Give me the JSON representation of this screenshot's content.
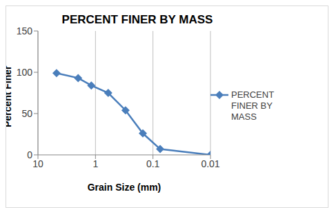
{
  "chart_data": {
    "type": "line",
    "title": "PERCENT FINER BY MASS",
    "x_label": "Grain Size (mm)",
    "y_label": "Percent Finer",
    "x": [
      4.75,
      2.0,
      1.18,
      0.6,
      0.3,
      0.15,
      0.075,
      0.01
    ],
    "series": [
      {
        "name": "PERCENT FINER BY MASS",
        "color": "#4a7ebb",
        "marker": "diamond",
        "values": [
          99,
          93,
          84,
          75,
          54,
          26,
          7,
          0
        ]
      }
    ],
    "xlim": [
      0.01,
      10
    ],
    "xticks": [
      10,
      1,
      0.1,
      0.01
    ],
    "ylim": [
      0,
      150
    ],
    "yticks": [
      0,
      50,
      100,
      150
    ],
    "log": "x",
    "grid": true,
    "legend": "right"
  }
}
